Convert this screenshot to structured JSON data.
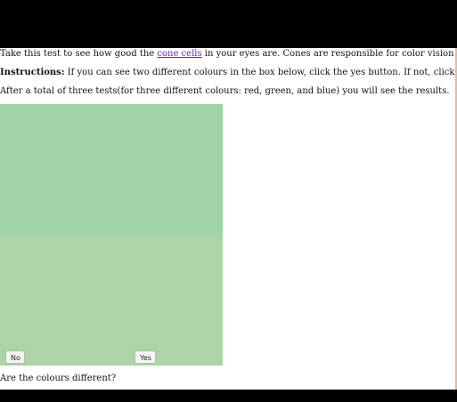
{
  "intro": {
    "before_link": "Take this test to see how good the ",
    "link_text": "cone cells",
    "after_link": " in your eyes are. Cones are responsible for color vision in our eyes."
  },
  "instructions": {
    "label": "Instructions:",
    "text": " If you can see two different colours in the box below, click the yes button. If not, click the no button."
  },
  "summary": "After a total of three tests(for three different colours: red, green, and blue) you will see the results.",
  "test_box": {
    "top_color": "#a0d4a6",
    "bottom_color": "#acd4a6"
  },
  "buttons": {
    "no_label": "No",
    "yes_label": "Yes"
  },
  "question": "Are the colours different?",
  "colors": {
    "link": "#5a2aa6",
    "background_outer": "#000000",
    "page_background": "#ffffff"
  }
}
